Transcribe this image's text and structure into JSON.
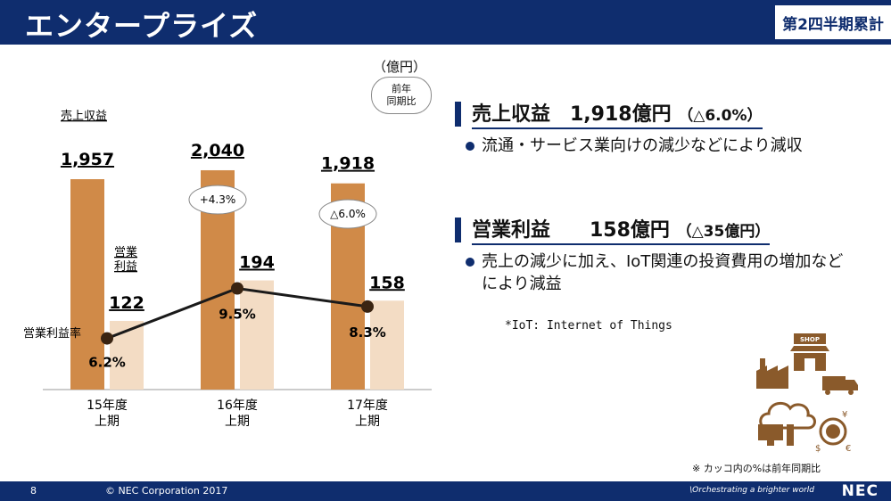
{
  "header": {
    "title": "エンタープライズ",
    "badge": "第2四半期累計"
  },
  "chart_data": {
    "type": "bar",
    "categories": [
      "15年度 上期",
      "16年度 上期",
      "17年度 上期"
    ],
    "series": [
      {
        "name": "売上収益",
        "values": [
          1957,
          2040,
          1918
        ],
        "color": "#d08a48"
      },
      {
        "name": "営業 利益",
        "values": [
          122,
          194,
          158
        ],
        "color": "#f3dcc4"
      }
    ],
    "line_series": {
      "name": "営業利益率",
      "values": [
        6.2,
        9.5,
        8.3
      ],
      "labels": [
        "6.2%",
        "9.5%",
        "8.3%"
      ],
      "color": "#1a1a1a"
    },
    "value_labels_sales": [
      "1,957",
      "2,040",
      "1,918"
    ],
    "value_labels_profit": [
      "122",
      "194",
      "158"
    ],
    "yoy_bubbles": [
      "+4.3%",
      "△6.0%"
    ],
    "category_lines": [
      [
        "15年度",
        "上期"
      ],
      [
        "16年度",
        "上期"
      ],
      [
        "17年度",
        "上期"
      ]
    ],
    "sales_label": "売上収益",
    "profit_label_lines": [
      "営業",
      "利益"
    ],
    "margin_label": "営業利益率"
  },
  "chart": {
    "unit": "（億円）",
    "yoy_label_lines": [
      "前年",
      "同期比"
    ]
  },
  "sections": {
    "sales": {
      "title_main": "売上収益　1,918億円",
      "title_sub": "（△6.0%）",
      "bullet": "流通・サービス業向けの減少などにより減収"
    },
    "profit": {
      "title_main": "営業利益　　158億円",
      "title_sub": "（△35億円）",
      "bullet": "売上の減少に加え、IoT関連の投資費用の増加などにより減益"
    },
    "footnote": "*IoT: Internet of Things"
  },
  "note": "※ カッコ内の%は前年同期比",
  "illustration": {
    "shop_sign": "SHOP",
    "icons": [
      "shop-icon",
      "factory-icon",
      "truck-icon",
      "cloud-icon",
      "computer-icon",
      "currency-globe-icon"
    ],
    "color": "#8a5a2b"
  },
  "footer": {
    "page": "8",
    "copyright": "© NEC Corporation 2017",
    "tagline": "\\Orchestrating a brighter world",
    "logo": "NEC"
  },
  "colors": {
    "brand": "#0f2d6e",
    "sales": "#d08a48",
    "profit": "#f3dcc4"
  }
}
